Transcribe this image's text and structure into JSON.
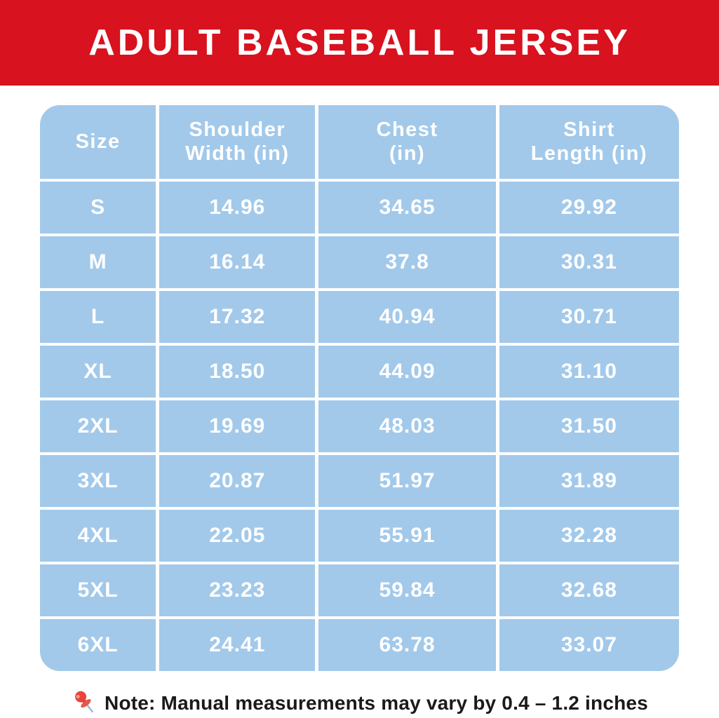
{
  "banner": {
    "title": "ADULT BASEBALL JERSEY"
  },
  "chart_data": {
    "type": "table",
    "title": "ADULT BASEBALL JERSEY",
    "column_names": [
      "Size",
      "Shoulder Width (in)",
      "Chest (in)",
      "Shirt Length (in)"
    ],
    "columns": [
      [
        "Size"
      ],
      [
        "Shoulder",
        "Width (in)"
      ],
      [
        "Chest",
        "(in)"
      ],
      [
        "Shirt",
        "Length (in)"
      ]
    ],
    "rows": [
      [
        "S",
        "14.96",
        "34.65",
        "29.92"
      ],
      [
        "M",
        "16.14",
        "37.8",
        "30.31"
      ],
      [
        "L",
        "17.32",
        "40.94",
        "30.71"
      ],
      [
        "XL",
        "18.50",
        "44.09",
        "31.10"
      ],
      [
        "2XL",
        "19.69",
        "48.03",
        "31.50"
      ],
      [
        "3XL",
        "20.87",
        "51.97",
        "31.89"
      ],
      [
        "4XL",
        "22.05",
        "55.91",
        "32.28"
      ],
      [
        "5XL",
        "23.23",
        "59.84",
        "32.68"
      ],
      [
        "6XL",
        "24.41",
        "63.78",
        "33.07"
      ]
    ]
  },
  "note": {
    "icon": "pushpin-icon",
    "text": "Note: Manual measurements may vary by 0.4 – 1.2 inches"
  },
  "colors": {
    "banner_red": "#D8121E",
    "cell_blue": "#A2C9EA",
    "cell_text": "#FFFFFF",
    "note_text": "#1A1A1A"
  }
}
